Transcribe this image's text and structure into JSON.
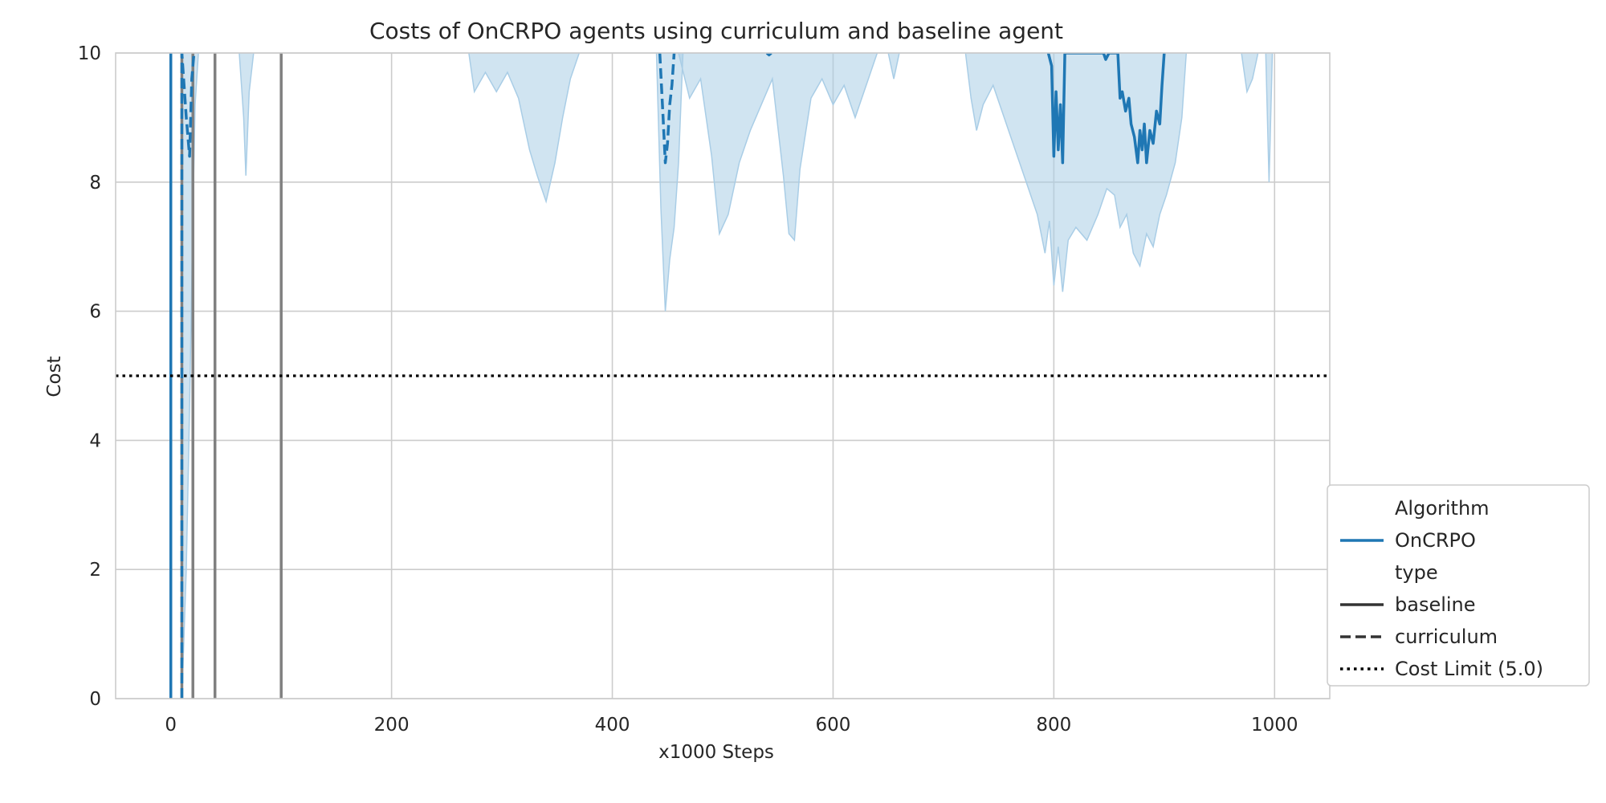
{
  "chart_data": {
    "type": "line",
    "title": "Costs of OnCRPO agents using curriculum and baseline agent",
    "xlabel": "x1000 Steps",
    "ylabel": "Cost",
    "xlim": [
      -50,
      1050
    ],
    "ylim": [
      0,
      10
    ],
    "xticks": [
      0,
      200,
      400,
      600,
      800,
      1000
    ],
    "yticks": [
      0,
      2,
      4,
      6,
      8,
      10
    ],
    "grid": true,
    "colors": {
      "oncrpo": "#1f77b4",
      "band": "#a9cde6",
      "stage_marker": "#808080",
      "limit": "#000000",
      "legend_type": "#333333"
    },
    "cost_limit": 5.0,
    "stage_markers_x": [
      10,
      20,
      40,
      100
    ],
    "series": [
      {
        "name": "OnCRPO",
        "style": "baseline",
        "points": [
          [
            0,
            0
          ],
          [
            0,
            10
          ]
        ],
        "band_segments": []
      },
      {
        "name": "OnCRPO",
        "style": "baseline",
        "points": [
          [
            540,
            10
          ],
          [
            542,
            9.97
          ],
          [
            544,
            10
          ]
        ],
        "band_segments": [
          {
            "points": [
              [
                460,
                10
              ],
              [
                470,
                9.3
              ],
              [
                480,
                9.6
              ],
              [
                490,
                8.4
              ],
              [
                497,
                7.2
              ],
              [
                505,
                7.5
              ],
              [
                515,
                8.3
              ],
              [
                525,
                8.8
              ],
              [
                535,
                9.2
              ],
              [
                545,
                9.6
              ],
              [
                555,
                8.1
              ],
              [
                560,
                7.2
              ],
              [
                565,
                7.1
              ],
              [
                570,
                8.2
              ],
              [
                580,
                9.3
              ],
              [
                590,
                9.6
              ],
              [
                600,
                9.2
              ],
              [
                610,
                9.5
              ],
              [
                620,
                9.0
              ],
              [
                630,
                9.5
              ],
              [
                640,
                10
              ]
            ]
          }
        ]
      },
      {
        "name": "OnCRPO",
        "style": "baseline",
        "points": [
          [
            795,
            10
          ],
          [
            798,
            9.8
          ],
          [
            800,
            8.4
          ],
          [
            802,
            9.4
          ],
          [
            804,
            8.5
          ],
          [
            806,
            9.2
          ],
          [
            808,
            8.3
          ],
          [
            810,
            10
          ],
          [
            845,
            10
          ],
          [
            847,
            9.9
          ],
          [
            850,
            10
          ],
          [
            858,
            10
          ],
          [
            860,
            9.3
          ],
          [
            862,
            9.4
          ],
          [
            865,
            9.1
          ],
          [
            868,
            9.3
          ],
          [
            870,
            8.9
          ],
          [
            873,
            8.7
          ],
          [
            876,
            8.3
          ],
          [
            878,
            8.8
          ],
          [
            880,
            8.5
          ],
          [
            882,
            8.9
          ],
          [
            884,
            8.3
          ],
          [
            887,
            8.8
          ],
          [
            890,
            8.6
          ],
          [
            893,
            9.1
          ],
          [
            896,
            8.9
          ],
          [
            898,
            9.5
          ],
          [
            900,
            10
          ]
        ],
        "band_segments": [
          {
            "points": [
              [
                720,
                10
              ],
              [
                725,
                9.3
              ],
              [
                730,
                8.8
              ],
              [
                736,
                9.2
              ],
              [
                745,
                9.5
              ],
              [
                755,
                9.0
              ],
              [
                765,
                8.5
              ],
              [
                775,
                8.0
              ],
              [
                785,
                7.5
              ],
              [
                792,
                6.9
              ],
              [
                796,
                7.4
              ],
              [
                800,
                6.4
              ],
              [
                804,
                7.0
              ],
              [
                808,
                6.3
              ],
              [
                813,
                7.1
              ],
              [
                820,
                7.3
              ],
              [
                830,
                7.1
              ],
              [
                840,
                7.5
              ],
              [
                848,
                7.9
              ],
              [
                855,
                7.8
              ],
              [
                860,
                7.3
              ],
              [
                866,
                7.5
              ],
              [
                872,
                6.9
              ],
              [
                878,
                6.7
              ],
              [
                884,
                7.2
              ],
              [
                890,
                7.0
              ],
              [
                896,
                7.5
              ],
              [
                902,
                7.8
              ],
              [
                910,
                8.3
              ],
              [
                916,
                9.0
              ],
              [
                920,
                10
              ]
            ]
          }
        ]
      },
      {
        "name": "OnCRPO",
        "style": "curriculum",
        "points": [
          [
            10,
            0
          ],
          [
            10,
            10
          ],
          [
            14,
            9.0
          ],
          [
            17,
            8.4
          ],
          [
            19,
            9.6
          ],
          [
            21,
            10
          ]
        ],
        "band_segments": [
          {
            "points": [
              [
                10,
                0
              ],
              [
                14,
                2.0
              ],
              [
                17,
                4.5
              ],
              [
                20,
                7.5
              ],
              [
                22,
                9.2
              ],
              [
                25,
                10
              ]
            ]
          }
        ]
      },
      {
        "name": "OnCRPO",
        "style": "curriculum",
        "points": [
          [
            443,
            10
          ],
          [
            446,
            9.0
          ],
          [
            448,
            8.3
          ],
          [
            450,
            8.6
          ],
          [
            452,
            9.2
          ],
          [
            454,
            9.5
          ],
          [
            456,
            10
          ]
        ],
        "band_segments": [
          {
            "points": [
              [
                440,
                10
              ],
              [
                444,
                7.6
              ],
              [
                448,
                6.0
              ],
              [
                452,
                6.8
              ],
              [
                456,
                7.3
              ],
              [
                460,
                8.3
              ],
              [
                464,
                10
              ]
            ]
          }
        ]
      },
      {
        "name": "OnCRPO",
        "style": "band-only",
        "points": [],
        "band_segments": [
          {
            "points": [
              [
                62,
                10
              ],
              [
                66,
                9.0
              ],
              [
                68,
                8.1
              ],
              [
                71,
                9.4
              ],
              [
                75,
                10
              ]
            ]
          },
          {
            "points": [
              [
                270,
                10
              ],
              [
                275,
                9.4
              ],
              [
                285,
                9.7
              ],
              [
                295,
                9.4
              ],
              [
                305,
                9.7
              ],
              [
                315,
                9.3
              ],
              [
                325,
                8.5
              ],
              [
                332,
                8.1
              ],
              [
                340,
                7.7
              ],
              [
                348,
                8.3
              ],
              [
                355,
                9.0
              ],
              [
                362,
                9.6
              ],
              [
                370,
                10
              ]
            ]
          },
          {
            "points": [
              [
                650,
                10
              ],
              [
                655,
                9.6
              ],
              [
                660,
                10
              ]
            ]
          },
          {
            "points": [
              [
                970,
                10
              ],
              [
                975,
                9.4
              ],
              [
                980,
                9.6
              ],
              [
                985,
                10
              ]
            ]
          },
          {
            "points": [
              [
                992,
                10
              ],
              [
                995,
                8.0
              ],
              [
                998,
                10
              ]
            ]
          }
        ]
      }
    ],
    "legend": {
      "placement": "bottom-right",
      "heading_algorithm": "Algorithm",
      "algorithm_entry": "OnCRPO",
      "heading_type": "type",
      "type_baseline": "baseline",
      "type_curriculum": "curriculum",
      "cost_limit_entry": "Cost Limit (5.0)"
    }
  }
}
